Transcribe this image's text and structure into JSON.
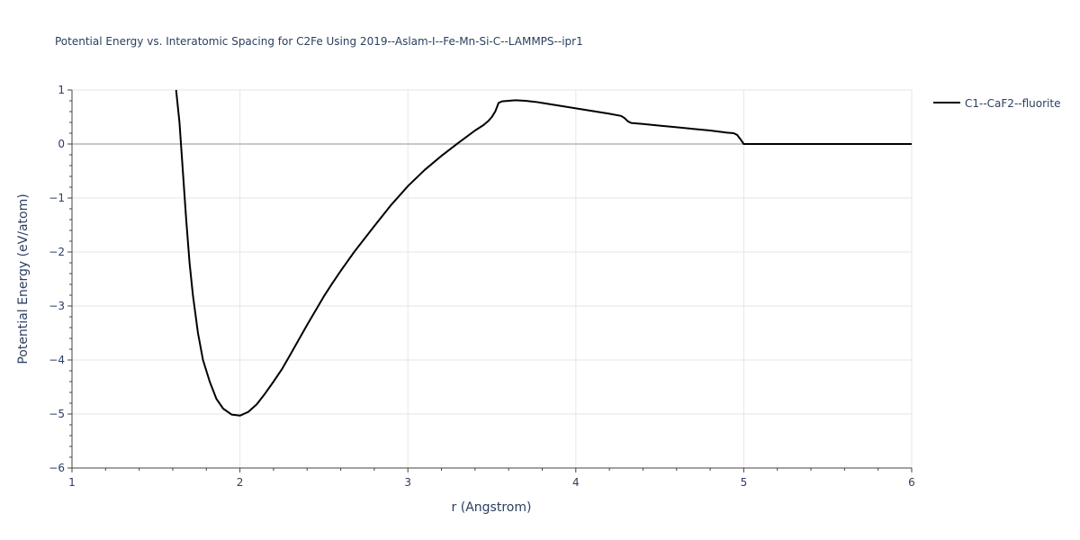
{
  "chart_data": {
    "type": "line",
    "title": "Potential Energy vs. Interatomic Spacing for C2Fe Using 2019--Aslam-I--Fe-Mn-Si-C--LAMMPS--ipr1",
    "xlabel": "r (Angstrom)",
    "ylabel": "Potential Energy (eV/atom)",
    "xlim": [
      1,
      6
    ],
    "ylim": [
      -6,
      1
    ],
    "xticks": [
      1,
      2,
      3,
      4,
      5,
      6
    ],
    "xtick_labels": [
      "1",
      "2",
      "3",
      "4",
      "5",
      "6"
    ],
    "yticks": [
      1,
      0,
      -1,
      -2,
      -3,
      -4,
      -5,
      -6
    ],
    "ytick_labels": [
      "1",
      "0",
      "−1",
      "−2",
      "−3",
      "−4",
      "−5",
      "−6"
    ],
    "grid": true,
    "legend_position": "top-right",
    "line_color": "#000000",
    "series": [
      {
        "name": "C1--CaF2--fluorite",
        "x": [
          1.62,
          1.64,
          1.66,
          1.68,
          1.7,
          1.72,
          1.75,
          1.78,
          1.82,
          1.86,
          1.9,
          1.95,
          2.0,
          2.05,
          2.1,
          2.15,
          2.2,
          2.25,
          2.3,
          2.4,
          2.5,
          2.55,
          2.6,
          2.68,
          2.8,
          2.9,
          3.0,
          3.1,
          3.2,
          3.3,
          3.4,
          3.45,
          3.48,
          3.5,
          3.52,
          3.53,
          3.54,
          3.56,
          3.6,
          3.64,
          3.7,
          3.76,
          3.8,
          3.9,
          4.0,
          4.1,
          4.2,
          4.27,
          4.29,
          4.31,
          4.33,
          4.4,
          4.5,
          4.6,
          4.7,
          4.8,
          4.9,
          4.94,
          4.96,
          4.98,
          5.0,
          5.2,
          5.5,
          6.0
        ],
        "y": [
          1.0,
          0.4,
          -0.5,
          -1.4,
          -2.2,
          -2.8,
          -3.5,
          -4.0,
          -4.4,
          -4.72,
          -4.9,
          -5.01,
          -5.03,
          -4.96,
          -4.82,
          -4.62,
          -4.4,
          -4.17,
          -3.9,
          -3.35,
          -2.82,
          -2.58,
          -2.35,
          -2.0,
          -1.52,
          -1.13,
          -0.78,
          -0.48,
          -0.22,
          0.02,
          0.25,
          0.35,
          0.43,
          0.5,
          0.6,
          0.68,
          0.76,
          0.79,
          0.8,
          0.81,
          0.8,
          0.78,
          0.76,
          0.71,
          0.66,
          0.61,
          0.56,
          0.52,
          0.48,
          0.42,
          0.39,
          0.37,
          0.34,
          0.31,
          0.28,
          0.25,
          0.21,
          0.2,
          0.17,
          0.09,
          0.0,
          0.0,
          0.0,
          0.0
        ]
      }
    ]
  }
}
